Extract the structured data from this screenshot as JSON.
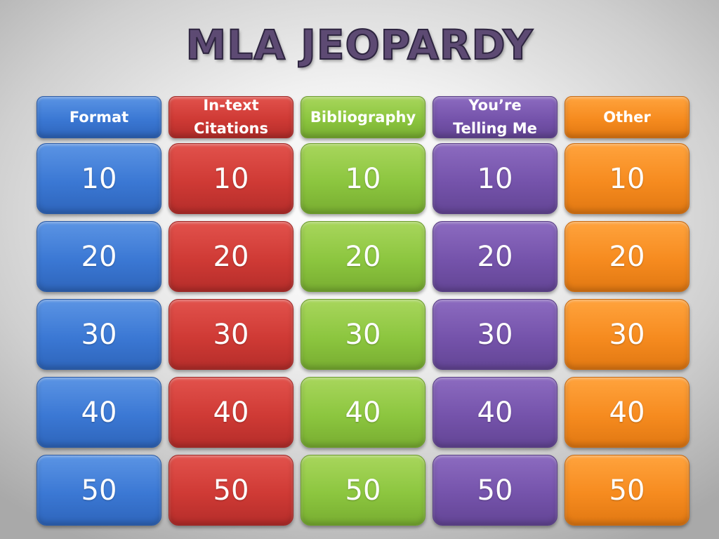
{
  "title": "MLA JEOPARDY",
  "categories": [
    {
      "label": "Format",
      "color": "#3b78d4"
    },
    {
      "label": "In-text\nCitations",
      "color": "#cf3a35"
    },
    {
      "label": "Bibliography",
      "color": "#8cc63f"
    },
    {
      "label": "You’re\nTelling Me",
      "color": "#7553ab"
    },
    {
      "label": "Other",
      "color": "#f68b1f"
    }
  ],
  "point_values": [
    "10",
    "20",
    "30",
    "40",
    "50"
  ]
}
